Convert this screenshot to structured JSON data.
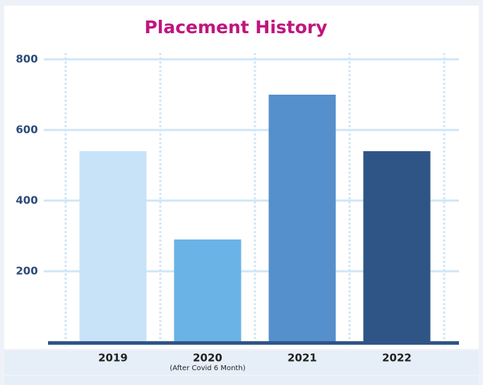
{
  "chart_data": {
    "type": "bar",
    "title": "Placement History",
    "categories": [
      "2019",
      "2020",
      "2021",
      "2022"
    ],
    "category_notes": [
      null,
      "(After Covid 6 Month)",
      null,
      null
    ],
    "series": [
      {
        "name": null,
        "colors": [
          "#c8e3f8",
          "#6ab3e6",
          "#558fcc",
          "#2f5586"
        ],
        "values": [
          540,
          290,
          700,
          540
        ]
      }
    ],
    "ylim": [
      0,
      800
    ],
    "yticks": [
      200,
      400,
      600,
      800
    ],
    "grid": true
  }
}
